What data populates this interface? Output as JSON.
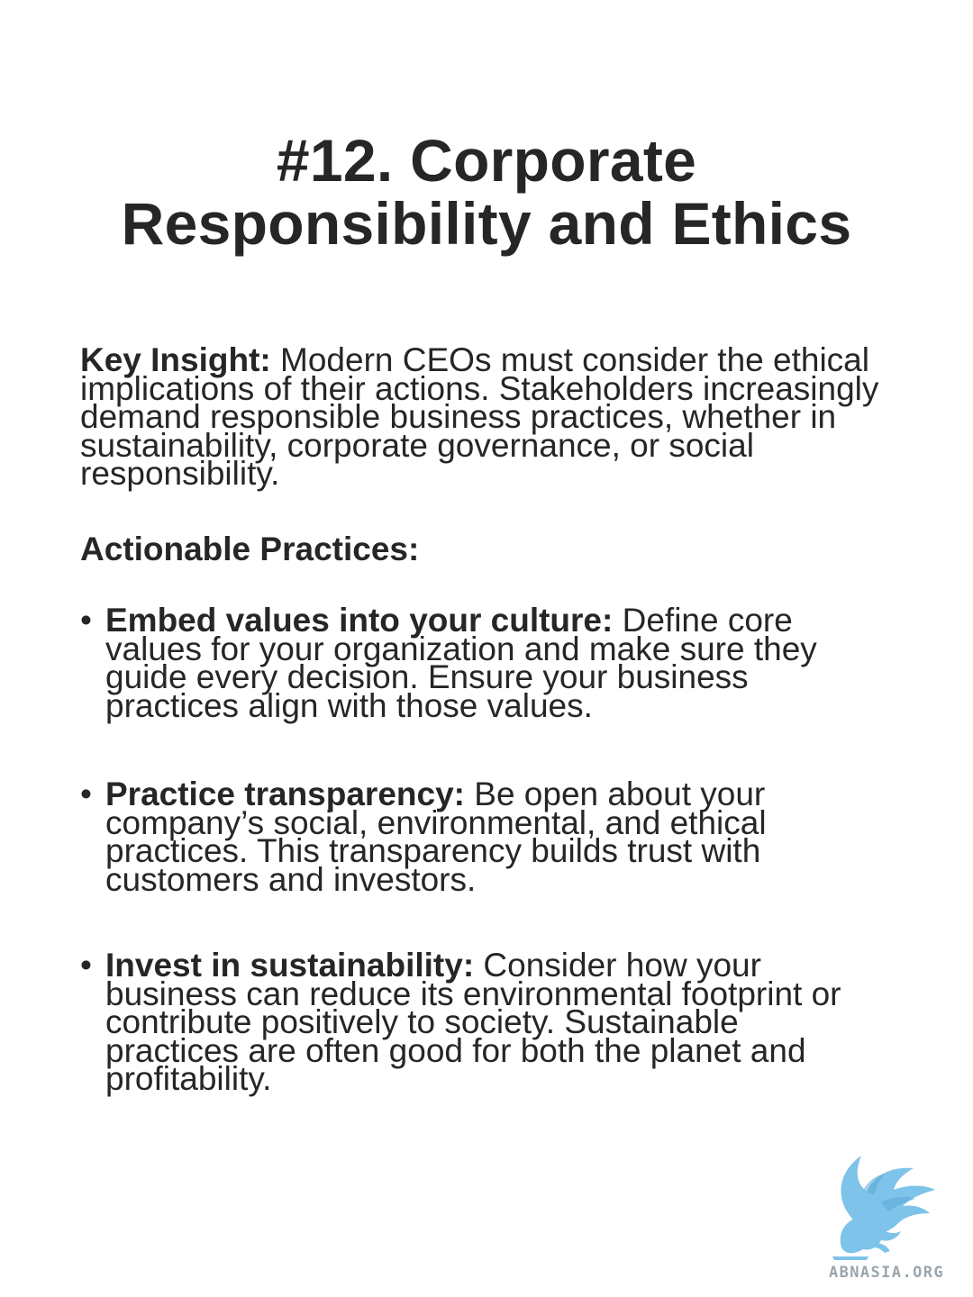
{
  "title": {
    "line1": "#12. Corporate",
    "line2": "Responsibility and Ethics"
  },
  "key_insight": {
    "label": "Key Insight:",
    "text": " Modern CEOs must consider the ethical implications of their actions. Stakeholders increasingly demand responsible business practices, whether in sustainability, corporate governance, or social responsibility."
  },
  "practices_heading": "Actionable Practices:",
  "bullets": [
    {
      "label": "Embed values into your culture:",
      "text": " Define core values for your organization and make sure they guide every decision. Ensure your business practices align with those values."
    },
    {
      "label": "Practice transparency:",
      "text": " Be open about your company’s social, environmental, and ethical practices. This transparency builds trust with customers and investors."
    },
    {
      "label": "Invest in sustainability:",
      "text": " Consider how your business can reduce its environmental footprint or contribute positively to society. Sustainable practices are often good for both the planet and profitability."
    }
  ],
  "bullet_symbol": "•",
  "logo": {
    "text": "ABNASIA.ORG",
    "icon": "griffin-logo-icon",
    "color": "#7ec3ea",
    "text_color": "#9aa6ad"
  }
}
